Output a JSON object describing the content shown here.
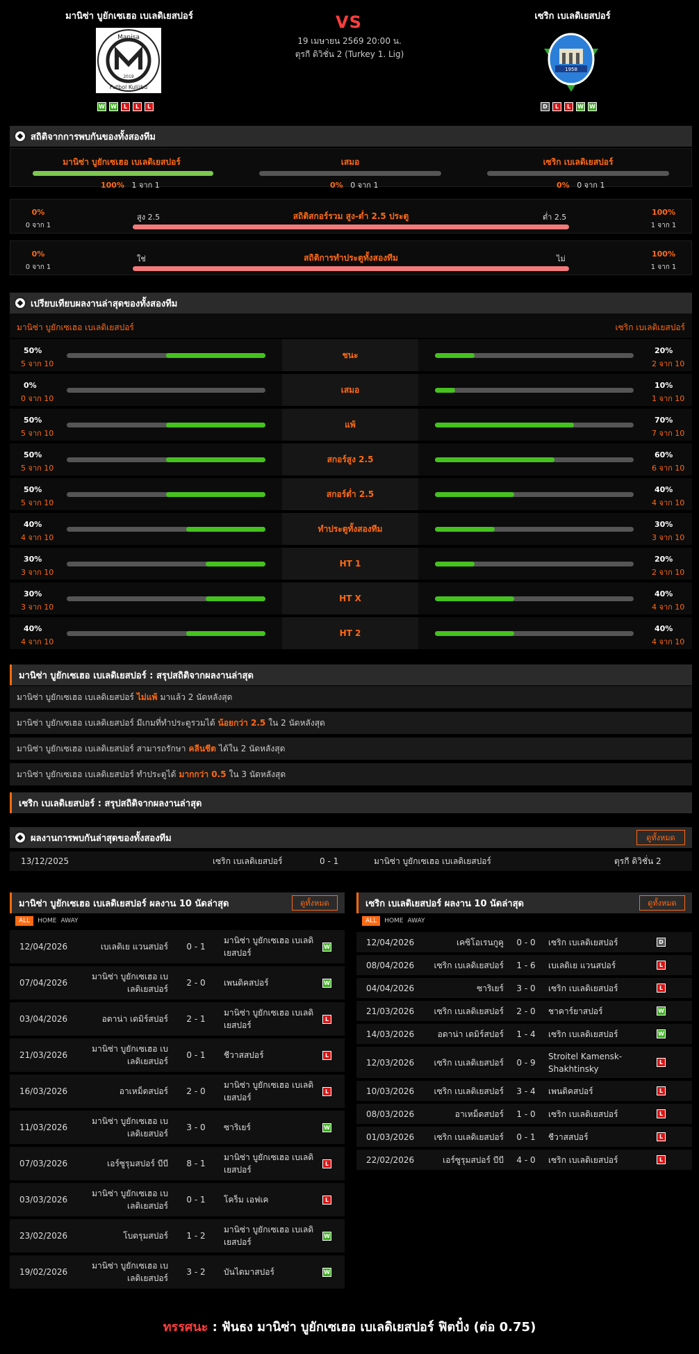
{
  "header": {
    "home_name": "มานิซ่า บูยักเซเฮอ เบเลดิเยสปอร์",
    "away_name": "เซริก เบเลดิเยสปอร์",
    "vs": "VS",
    "datetime": "19 เมษายน 2569 20:00 น.",
    "league": "ตุรกี ดิวิชั่น 2 (Turkey 1. Lig)",
    "home_logo_text": [
      "Manisa",
      "2019",
      "Futbol Kulübü"
    ],
    "away_logo_text": "1958",
    "home_form": [
      "W",
      "W",
      "L",
      "L",
      "L"
    ],
    "away_form": [
      "D",
      "L",
      "L",
      "W",
      "W"
    ]
  },
  "h2h": {
    "title": "สถิติจากการพบกันของทั้งสองทีม",
    "home_label": "มานิซ่า บูยักเซเฮอ เบเลดิเยสปอร์",
    "home_pct": "100%",
    "home_cnt": "1 จาก 1",
    "home_fill": 1.0,
    "draw_label": "เสมอ",
    "draw_pct": "0%",
    "draw_cnt": "0 จาก 1",
    "draw_fill": 0,
    "away_label": "เซริก เบเลดิเยสปอร์",
    "away_pct": "0%",
    "away_cnt": "0 จาก 1",
    "away_fill": 0,
    "ou": {
      "left_pct": "0%",
      "left_cnt": "0 จาก 1",
      "left_label": "สูง 2.5",
      "title": "สถิติสกอร์รวม สูง-ต่ำ 2.5 ประตู",
      "right_label": "ต่ำ 2.5",
      "right_pct": "100%",
      "right_cnt": "1 จาก 1"
    },
    "btts": {
      "left_pct": "0%",
      "left_cnt": "0 จาก 1",
      "left_label": "ใช่",
      "title": "สถิติการทำประตูทั้งสองทีม",
      "right_label": "ไม่",
      "right_pct": "100%",
      "right_cnt": "1 จาก 1"
    }
  },
  "compare": {
    "title": "เปรียบเทียบผลงานล่าสุดของทั้งสองทีม",
    "home": "มานิซ่า บูยักเซเฮอ เบเลดิเยสปอร์",
    "away": "เซริก เบเลดิเยสปอร์",
    "rows": [
      {
        "label": "ชนะ",
        "hp": "50%",
        "hc": "5 จาก 10",
        "hf": 0.5,
        "ap": "20%",
        "ac": "2 จาก 10",
        "af": 0.2
      },
      {
        "label": "เสมอ",
        "hp": "0%",
        "hc": "0 จาก 10",
        "hf": 0,
        "ap": "10%",
        "ac": "1 จาก 10",
        "af": 0.1
      },
      {
        "label": "แพ้",
        "hp": "50%",
        "hc": "5 จาก 10",
        "hf": 0.5,
        "ap": "70%",
        "ac": "7 จาก 10",
        "af": 0.7
      },
      {
        "label": "สกอร์สูง 2.5",
        "hp": "50%",
        "hc": "5 จาก 10",
        "hf": 0.5,
        "ap": "60%",
        "ac": "6 จาก 10",
        "af": 0.6
      },
      {
        "label": "สกอร์ต่ำ 2.5",
        "hp": "50%",
        "hc": "5 จาก 10",
        "hf": 0.5,
        "ap": "40%",
        "ac": "4 จาก 10",
        "af": 0.4
      },
      {
        "label": "ทำประตูทั้งสองทีม",
        "hp": "40%",
        "hc": "4 จาก 10",
        "hf": 0.4,
        "ap": "30%",
        "ac": "3 จาก 10",
        "af": 0.3
      },
      {
        "label": "HT 1",
        "hp": "30%",
        "hc": "3 จาก 10",
        "hf": 0.3,
        "ap": "20%",
        "ac": "2 จาก 10",
        "af": 0.2
      },
      {
        "label": "HT X",
        "hp": "30%",
        "hc": "3 จาก 10",
        "hf": 0.3,
        "ap": "40%",
        "ac": "4 จาก 10",
        "af": 0.4
      },
      {
        "label": "HT 2",
        "hp": "40%",
        "hc": "4 จาก 10",
        "hf": 0.4,
        "ap": "40%",
        "ac": "4 จาก 10",
        "af": 0.4
      }
    ]
  },
  "summary_home": {
    "title": "มานิซ่า บูยักเซเฮอ เบเลดิเยสปอร์ : สรุปสถิติจากผลงานล่าสุด",
    "lines": [
      {
        "a": "มานิซ่า บูยักเซเฮอ เบเลดิเยสปอร์",
        "b": "ไม่แพ้",
        "c": "มาแล้ว 2 นัดหลังสุด"
      },
      {
        "a": "มานิซ่า บูยักเซเฮอ เบเลดิเยสปอร์ มีเกมที่ทำประตูรวมได้",
        "b": "น้อยกว่า 2.5",
        "c": "ใน 2 นัดหลังสุด"
      },
      {
        "a": "มานิซ่า บูยักเซเฮอ เบเลดิเยสปอร์ สามารถรักษา",
        "b": "คลีนชีต",
        "c": "ได้ใน 2 นัดหลังสุด"
      },
      {
        "a": "มานิซ่า บูยักเซเฮอ เบเลดิเยสปอร์ ทำประตูได้",
        "b": "มากกว่า 0.5",
        "c": "ใน 3 นัดหลังสุด"
      }
    ]
  },
  "summary_away": {
    "title": "เซริก เบเลดิเยสปอร์ : สรุปสถิติจากผลงานล่าสุด"
  },
  "last_meet": {
    "title": "ผลงานการพบกันล่าสุดของทั้งสองทีม",
    "btn": "ดูทั้งหมด",
    "date": "13/12/2025",
    "home": "เซริก เบเลดิเยสปอร์",
    "score": "0 - 1",
    "away": "มานิซ่า บูยักเซเฮอ เบเลดิเยสปอร์",
    "league": "ตุรกี ดิวิชั่น 2"
  },
  "home_last10": {
    "title": "มานิซ่า บูยักเซเฮอ เบเลดิเยสปอร์ ผลงาน 10 นัดล่าสุด",
    "btn": "ดูทั้งหมด",
    "tabs": [
      "ALL",
      "HOME",
      "AWAY"
    ],
    "rows": [
      {
        "d": "12/04/2026",
        "h": "เบเลดิเย แวนสปอร์",
        "s": "0 - 1",
        "a": "มานิซ่า บูยักเซเฮอ เบเลดิเยสปอร์",
        "r": "W"
      },
      {
        "d": "07/04/2026",
        "h": "มานิซ่า บูยักเซเฮอ เบเลดิเยสปอร์",
        "s": "2 - 0",
        "a": "เพนดิคสปอร์",
        "r": "W"
      },
      {
        "d": "03/04/2026",
        "h": "อดาน่า เดมิร์สปอร์",
        "s": "2 - 1",
        "a": "มานิซ่า บูยักเซเฮอ เบเลดิเยสปอร์",
        "r": "L"
      },
      {
        "d": "21/03/2026",
        "h": "มานิซ่า บูยักเซเฮอ เบเลดิเยสปอร์",
        "s": "0 - 1",
        "a": "ชีวาสสปอร์",
        "r": "L"
      },
      {
        "d": "16/03/2026",
        "h": "อาเหม็ดสปอร์",
        "s": "2 - 0",
        "a": "มานิซ่า บูยักเซเฮอ เบเลดิเยสปอร์",
        "r": "L"
      },
      {
        "d": "11/03/2026",
        "h": "มานิซ่า บูยักเซเฮอ เบเลดิเยสปอร์",
        "s": "3 - 0",
        "a": "ซาริเยร์",
        "r": "W"
      },
      {
        "d": "07/03/2026",
        "h": "เอร์ซูรุมสปอร์ บีบี",
        "s": "8 - 1",
        "a": "มานิซ่า บูยักเซเฮอ เบเลดิเยสปอร์",
        "r": "L"
      },
      {
        "d": "03/03/2026",
        "h": "มานิซ่า บูยักเซเฮอ เบเลดิเยสปอร์",
        "s": "0 - 1",
        "a": "โคร็ม เอฟเค",
        "r": "L"
      },
      {
        "d": "23/02/2026",
        "h": "โบดรุมสปอร์",
        "s": "1 - 2",
        "a": "มานิซ่า บูยักเซเฮอ เบเลดิเยสปอร์",
        "r": "W"
      },
      {
        "d": "19/02/2026",
        "h": "มานิซ่า บูยักเซเฮอ เบเลดิเยสปอร์",
        "s": "3 - 2",
        "a": "บันไดมาสปอร์",
        "r": "W"
      }
    ]
  },
  "away_last10": {
    "title": "เซริก เบเลดิเยสปอร์ ผลงาน 10 นัดล่าสุด",
    "btn": "ดูทั้งหมด",
    "tabs": [
      "ALL",
      "HOME",
      "AWAY"
    ],
    "rows": [
      {
        "d": "12/04/2026",
        "h": "เคซิโอเรนกูคู",
        "s": "0 - 0",
        "a": "เซริก เบเลดิเยสปอร์",
        "r": "D"
      },
      {
        "d": "08/04/2026",
        "h": "เซริก เบเลดิเยสปอร์",
        "s": "1 - 6",
        "a": "เบเลดิเย แวนสปอร์",
        "r": "L"
      },
      {
        "d": "04/04/2026",
        "h": "ซาริเยร์",
        "s": "3 - 0",
        "a": "เซริก เบเลดิเยสปอร์",
        "r": "L"
      },
      {
        "d": "21/03/2026",
        "h": "เซริก เบเลดิเยสปอร์",
        "s": "2 - 0",
        "a": "ชาคาร์ยาสปอร์",
        "r": "W"
      },
      {
        "d": "14/03/2026",
        "h": "อดาน่า เดมิร์สปอร์",
        "s": "1 - 4",
        "a": "เซริก เบเลดิเยสปอร์",
        "r": "W"
      },
      {
        "d": "12/03/2026",
        "h": "เซริก เบเลดิเยสปอร์",
        "s": "0 - 9",
        "a": "Stroitel Kamensk-Shakhtinsky",
        "r": "L"
      },
      {
        "d": "10/03/2026",
        "h": "เซริก เบเลดิเยสปอร์",
        "s": "3 - 4",
        "a": "เพนดิคสปอร์",
        "r": "L"
      },
      {
        "d": "08/03/2026",
        "h": "อาเหม็ดสปอร์",
        "s": "1 - 0",
        "a": "เซริก เบเลดิเยสปอร์",
        "r": "L"
      },
      {
        "d": "01/03/2026",
        "h": "เซริก เบเลดิเยสปอร์",
        "s": "0 - 1",
        "a": "ชีวาสสปอร์",
        "r": "L"
      },
      {
        "d": "22/02/2026",
        "h": "เอร์ซูรุมสปอร์ บีบี",
        "s": "4 - 0",
        "a": "เซริก เบเลดิเยสปอร์",
        "r": "L"
      }
    ]
  },
  "verdict": {
    "label": "ทรรศนะ",
    "colon": " : ",
    "text": " ฟันธง มานิซ่า บูยักเซเฮอ เบเลดิเยสปอร์ ฟิตปั๋ง (ต่อ 0.75)"
  }
}
